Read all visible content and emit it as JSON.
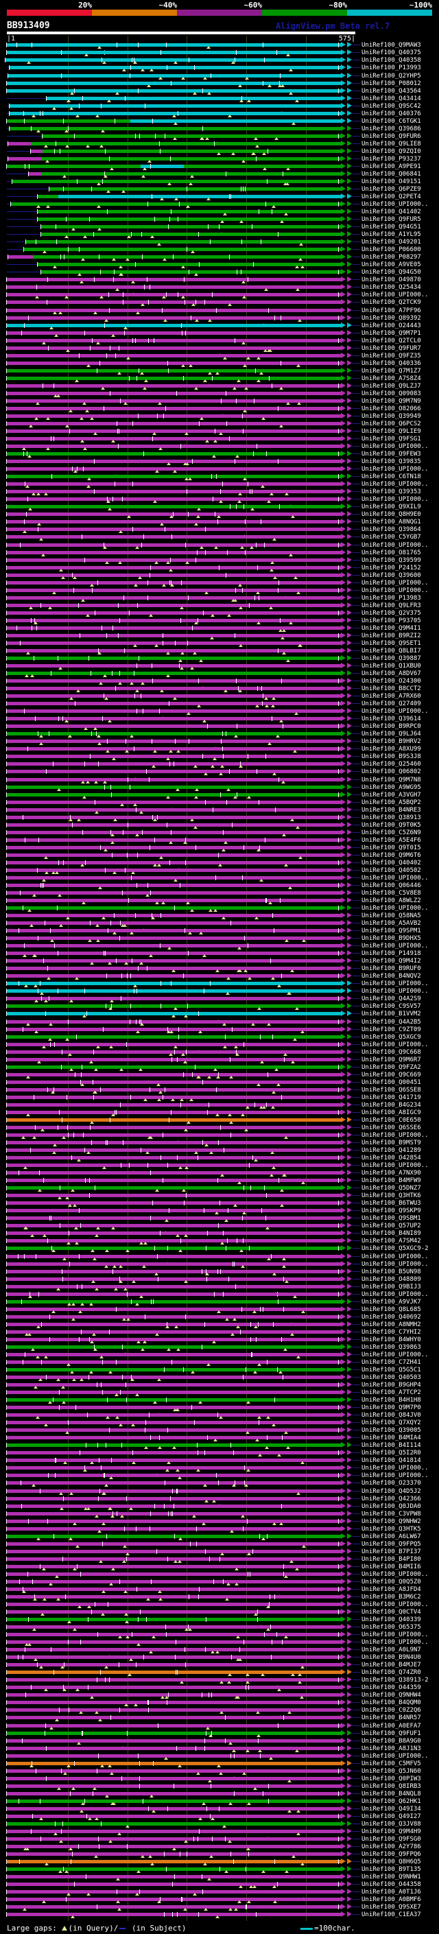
{
  "colors": {
    "c": "#00c2cc",
    "g": "#00a000",
    "m": "#b230b2",
    "o": "#e07818",
    "navy": "#1c1c96",
    "gap_yellow": "#e6e696",
    "grid": "#3f3f12",
    "scale_red": "#e51230",
    "scale_orange": "#d97800",
    "scale_purple": "#8c1c8c",
    "scale_green": "#009400",
    "scale_cyan": "#00b8c4"
  },
  "chart_data": {
    "type": "table",
    "title": "BB913409",
    "program": "AlignView.pm Beta rel.7",
    "ruler": {
      "start_label": "|1",
      "end_label": "575|",
      "start": 1,
      "end": 575
    },
    "identity_scale": {
      "labels": [
        "20%",
        "~40%",
        "~60%",
        "~80%",
        "~100%"
      ],
      "colors": [
        "#e51230",
        "#d97800",
        "#8c1c8c",
        "#009400",
        "#00b8c4"
      ]
    },
    "legend": {
      "large_gaps": "Large gaps:",
      "query_gap_suffix": "(in Query)/",
      "subject_gap_suffix": " (in Subject)",
      "char_scale": "=100char."
    },
    "label_prefix": "UniRef100_",
    "hits": [
      {
        "l": "Q9MAW3",
        "c": "c"
      },
      {
        "l": "Q40375",
        "c": "c"
      },
      {
        "l": "Q40358",
        "c": "c",
        "s": 8
      },
      {
        "l": "P13993",
        "c": "c",
        "s": 14
      },
      {
        "l": "Q2YHP5",
        "c": "c",
        "s": 12
      },
      {
        "l": "P08012",
        "c": "c"
      },
      {
        "l": "Q43564",
        "c": "c"
      },
      {
        "l": "Q43414",
        "c": "c",
        "s": 68
      },
      {
        "l": "Q9SC42",
        "c": "c",
        "s": 14
      },
      {
        "l": "Q40376",
        "c": "c",
        "s": 14
      },
      {
        "l": "C6TGK1",
        "c": "c",
        "g2": [
          [
            10,
            190,
            "g"
          ],
          [
            190,
            497,
            "c"
          ]
        ]
      },
      {
        "l": "Q39686",
        "c": "g",
        "s": 14
      },
      {
        "l": "Q9FUR6",
        "c": "g",
        "s": 62
      },
      {
        "l": "Q9LIE8",
        "c": "g",
        "s": 12,
        "p": [
          12,
          45
        ]
      },
      {
        "l": "Q9ZQI0",
        "c": "g",
        "s": 45,
        "p": [
          45,
          62
        ]
      },
      {
        "l": "P93237",
        "c": "g",
        "s": 12,
        "p": [
          12,
          60
        ]
      },
      {
        "l": "A9PE91",
        "c": "g",
        "g2": [
          [
            10,
            205,
            "g"
          ],
          [
            205,
            268,
            "c"
          ],
          [
            268,
            497,
            "g"
          ]
        ]
      },
      {
        "l": "Q06841",
        "c": "g",
        "s": 42,
        "p": [
          42,
          60
        ]
      },
      {
        "l": "O49151",
        "c": "g",
        "s": 18
      },
      {
        "l": "Q6PZE9",
        "c": "g",
        "s": 72
      },
      {
        "l": "Q2PET4",
        "c": "c",
        "s": 55,
        "g2": [
          [
            55,
            85,
            "g"
          ],
          [
            85,
            497,
            "c"
          ]
        ]
      },
      {
        "l": "UPI000..",
        "c": "g",
        "s": 16
      },
      {
        "l": "Q41402",
        "c": "g",
        "s": 55
      },
      {
        "l": "Q9FUR5",
        "c": "g",
        "s": 55
      },
      {
        "l": "Q94G51",
        "c": "g",
        "s": 60
      },
      {
        "l": "A1YL95",
        "c": "g",
        "s": 60
      },
      {
        "l": "O49201",
        "c": "g",
        "s": 38
      },
      {
        "l": "P06600",
        "c": "g",
        "s": 35
      },
      {
        "l": "P08297",
        "c": "g",
        "s": 12,
        "p": [
          12,
          48
        ]
      },
      {
        "l": "A9VE05",
        "c": "g",
        "s": 55
      },
      {
        "l": "Q94G50",
        "c": "g",
        "s": 60
      },
      {
        "l": "O49870",
        "c": "m"
      },
      {
        "l": "Q25434",
        "c": "m"
      },
      {
        "l": "UPI000..",
        "c": "m"
      },
      {
        "l": "Q2TCK9",
        "c": "m"
      },
      {
        "l": "A7PF96",
        "c": "m"
      },
      {
        "l": "Q89392",
        "c": "m"
      },
      {
        "l": "O24443",
        "c": "c"
      },
      {
        "l": "Q9M7P1",
        "c": "m"
      },
      {
        "l": "Q2TCL0",
        "c": "m"
      },
      {
        "l": "Q9FUR7",
        "c": "m"
      },
      {
        "l": "Q9FZ35",
        "c": "m"
      },
      {
        "l": "Q40336",
        "c": "m"
      },
      {
        "l": "Q7M1Z7",
        "c": "g"
      },
      {
        "l": "A7S8Z4",
        "c": "g"
      },
      {
        "l": "Q9LZJ7",
        "c": "m"
      },
      {
        "l": "Q09083",
        "c": "m"
      },
      {
        "l": "Q9M7N9",
        "c": "m"
      },
      {
        "l": "O82066",
        "c": "m"
      },
      {
        "l": "Q39949",
        "c": "m"
      },
      {
        "l": "Q6PCS2",
        "c": "m"
      },
      {
        "l": "Q9LIE9",
        "c": "m"
      },
      {
        "l": "Q9FSG1",
        "c": "m"
      },
      {
        "l": "UPI000..",
        "c": "m"
      },
      {
        "l": "Q9FEW3",
        "c": "g"
      },
      {
        "l": "Q39835",
        "c": "m"
      },
      {
        "l": "UPI000..",
        "c": "m"
      },
      {
        "l": "C6TN18",
        "c": "g"
      },
      {
        "l": "UPI000..",
        "c": "m"
      },
      {
        "l": "Q39353",
        "c": "m"
      },
      {
        "l": "UPI000..",
        "c": "m"
      },
      {
        "l": "Q9XIL9",
        "c": "g"
      },
      {
        "l": "Q8H9E0",
        "c": "m"
      },
      {
        "l": "A8NQG1",
        "c": "m"
      },
      {
        "l": "Q39864",
        "c": "m"
      },
      {
        "l": "C5YGB7",
        "c": "m"
      },
      {
        "l": "UPI000..",
        "c": "m"
      },
      {
        "l": "O81765",
        "c": "m"
      },
      {
        "l": "Q39599",
        "c": "m"
      },
      {
        "l": "P24152",
        "c": "m"
      },
      {
        "l": "Q39600",
        "c": "m"
      },
      {
        "l": "UPI000..",
        "c": "m"
      },
      {
        "l": "UPI000..",
        "c": "m"
      },
      {
        "l": "P13983",
        "c": "m"
      },
      {
        "l": "Q9LFR3",
        "c": "m"
      },
      {
        "l": "Q2V375",
        "c": "m"
      },
      {
        "l": "P93705",
        "c": "m"
      },
      {
        "l": "Q9M4I1",
        "c": "m"
      },
      {
        "l": "B9RZI2",
        "c": "m"
      },
      {
        "l": "Q9SET1",
        "c": "m"
      },
      {
        "l": "Q8LBI7",
        "c": "m"
      },
      {
        "l": "Q39887",
        "c": "g"
      },
      {
        "l": "Q1XBU0",
        "c": "m"
      },
      {
        "l": "A8DV67",
        "c": "g"
      },
      {
        "l": "O24300",
        "c": "m"
      },
      {
        "l": "B8CCT2",
        "c": "m"
      },
      {
        "l": "A7RX60",
        "c": "m"
      },
      {
        "l": "Q27409",
        "c": "m"
      },
      {
        "l": "UPI000..",
        "c": "m"
      },
      {
        "l": "Q39614",
        "c": "m"
      },
      {
        "l": "B9RPC0",
        "c": "m"
      },
      {
        "l": "Q9LJ64",
        "c": "g"
      },
      {
        "l": "B9HRV2",
        "c": "m"
      },
      {
        "l": "A8XU99",
        "c": "m"
      },
      {
        "l": "B9S3J8",
        "c": "m"
      },
      {
        "l": "Q25460",
        "c": "m"
      },
      {
        "l": "Q06802",
        "c": "m"
      },
      {
        "l": "Q9M7N8",
        "c": "m"
      },
      {
        "l": "A9WG95",
        "c": "g"
      },
      {
        "l": "A3VGH7",
        "c": "g"
      },
      {
        "l": "A5BQP2",
        "c": "m"
      },
      {
        "l": "B4NRE3",
        "c": "m"
      },
      {
        "l": "Q38913",
        "c": "m"
      },
      {
        "l": "Q9T0K5",
        "c": "m"
      },
      {
        "l": "C5Z6N9",
        "c": "m"
      },
      {
        "l": "A5E4F6",
        "c": "m"
      },
      {
        "l": "Q9T0I5",
        "c": "m"
      },
      {
        "l": "Q9M6T6",
        "c": "m"
      },
      {
        "l": "Q40402",
        "c": "m"
      },
      {
        "l": "Q40502",
        "c": "m"
      },
      {
        "l": "UPI000..",
        "c": "m"
      },
      {
        "l": "Q06446",
        "c": "m"
      },
      {
        "l": "C5V8E8",
        "c": "m"
      },
      {
        "l": "A8WLZ2",
        "c": "m"
      },
      {
        "l": "UPI000..",
        "c": "g"
      },
      {
        "l": "Q58NA5",
        "c": "m"
      },
      {
        "l": "A5AVB2",
        "c": "m"
      },
      {
        "l": "Q9SPM1",
        "c": "m"
      },
      {
        "l": "B9DHX5",
        "c": "m"
      },
      {
        "l": "UPI000..",
        "c": "m"
      },
      {
        "l": "P14918",
        "c": "m"
      },
      {
        "l": "Q9M4I2",
        "c": "m"
      },
      {
        "l": "B9RUF0",
        "c": "m"
      },
      {
        "l": "B4NQV2",
        "c": "m"
      },
      {
        "l": "UPI000..",
        "c": "c"
      },
      {
        "l": "UPI000..",
        "c": "c"
      },
      {
        "l": "Q4A2S9",
        "c": "m"
      },
      {
        "l": "C9SV57",
        "c": "g"
      },
      {
        "l": "B1VVM2",
        "c": "c"
      },
      {
        "l": "Q4A2B5",
        "c": "m"
      },
      {
        "l": "C9ZT09",
        "c": "m"
      },
      {
        "l": "Q5XGC9",
        "c": "g"
      },
      {
        "l": "UPI000..",
        "c": "m"
      },
      {
        "l": "Q9C668",
        "c": "m"
      },
      {
        "l": "Q9M6R7",
        "c": "m"
      },
      {
        "l": "Q9FZA2",
        "c": "g"
      },
      {
        "l": "Q9C669",
        "c": "m"
      },
      {
        "l": "Q00451",
        "c": "m"
      },
      {
        "l": "Q6SSE8",
        "c": "m"
      },
      {
        "l": "Q41719",
        "c": "m"
      },
      {
        "l": "B4G234",
        "c": "m"
      },
      {
        "l": "A8IGC9",
        "c": "m"
      },
      {
        "l": "C0E650",
        "c": "o"
      },
      {
        "l": "Q6SSE6",
        "c": "m"
      },
      {
        "l": "UPI000..",
        "c": "m"
      },
      {
        "l": "B9MST9",
        "c": "m"
      },
      {
        "l": "Q41289",
        "c": "m"
      },
      {
        "l": "O42854",
        "c": "m"
      },
      {
        "l": "UPI000..",
        "c": "m"
      },
      {
        "l": "A7NX90",
        "c": "m"
      },
      {
        "l": "B4MFW9",
        "c": "m"
      },
      {
        "l": "Q5DNZ7",
        "c": "g"
      },
      {
        "l": "Q3HTK6",
        "c": "m"
      },
      {
        "l": "B6TWU3",
        "c": "m"
      },
      {
        "l": "Q9SKP9",
        "c": "m"
      },
      {
        "l": "Q9SBM1",
        "c": "m"
      },
      {
        "l": "Q57UP2",
        "c": "m"
      },
      {
        "l": "B4NI89",
        "c": "m"
      },
      {
        "l": "A7SM42",
        "c": "m"
      },
      {
        "l": "Q5XGC9-2",
        "c": "g"
      },
      {
        "l": "UPI000..",
        "c": "m"
      },
      {
        "l": "UPI000..",
        "c": "m"
      },
      {
        "l": "B5UN98",
        "c": "m"
      },
      {
        "l": "O48809",
        "c": "m"
      },
      {
        "l": "Q9BIJ3",
        "c": "m"
      },
      {
        "l": "UPI000..",
        "c": "m"
      },
      {
        "l": "A9VJK7",
        "c": "g"
      },
      {
        "l": "Q8L685",
        "c": "m"
      },
      {
        "l": "Q40692",
        "c": "m"
      },
      {
        "l": "A8NMH2",
        "c": "m"
      },
      {
        "l": "C7YHI2",
        "c": "m"
      },
      {
        "l": "B4WHY0",
        "c": "m"
      },
      {
        "l": "Q39863",
        "c": "g"
      },
      {
        "l": "UPI000..",
        "c": "m"
      },
      {
        "l": "C7ZH41",
        "c": "m"
      },
      {
        "l": "Q5G5C1",
        "c": "g"
      },
      {
        "l": "Q40503",
        "c": "m"
      },
      {
        "l": "B9GHP4",
        "c": "m"
      },
      {
        "l": "A7TCP2",
        "c": "m"
      },
      {
        "l": "B4H1H8",
        "c": "g"
      },
      {
        "l": "Q9M7P0",
        "c": "m"
      },
      {
        "l": "Q84JV0",
        "c": "m"
      },
      {
        "l": "Q7XQY2",
        "c": "m"
      },
      {
        "l": "Q39005",
        "c": "m"
      },
      {
        "l": "B4MIA4",
        "c": "m"
      },
      {
        "l": "B4I114",
        "c": "g"
      },
      {
        "l": "Q5I2R0",
        "c": "m"
      },
      {
        "l": "Q41814",
        "c": "m"
      },
      {
        "l": "UPI000..",
        "c": "m"
      },
      {
        "l": "UPI000..",
        "c": "m"
      },
      {
        "l": "O23370",
        "c": "m"
      },
      {
        "l": "Q4D5J2",
        "c": "m"
      },
      {
        "l": "Q42366",
        "c": "m"
      },
      {
        "l": "Q0JDA0",
        "c": "m"
      },
      {
        "l": "C3VPW8",
        "c": "m"
      },
      {
        "l": "Q9NHW2",
        "c": "m"
      },
      {
        "l": "Q3HTK5",
        "c": "m"
      },
      {
        "l": "A6LW67",
        "c": "g"
      },
      {
        "l": "Q9FPQ5",
        "c": "m"
      },
      {
        "l": "B7PI37",
        "c": "m"
      },
      {
        "l": "B4PI80",
        "c": "m"
      },
      {
        "l": "B4MII6",
        "c": "m"
      },
      {
        "l": "UPI000..",
        "c": "m"
      },
      {
        "l": "Q0Q5Z0",
        "c": "m"
      },
      {
        "l": "A8JFD4",
        "c": "m"
      },
      {
        "l": "B3M6C2",
        "c": "m"
      },
      {
        "l": "UPI000..",
        "c": "m"
      },
      {
        "l": "Q0CTV4",
        "c": "m"
      },
      {
        "l": "Q40339",
        "c": "g"
      },
      {
        "l": "O65375",
        "c": "m"
      },
      {
        "l": "UPI000..",
        "c": "m"
      },
      {
        "l": "UPI000..",
        "c": "m"
      },
      {
        "l": "A0L9N7",
        "c": "m"
      },
      {
        "l": "B9N4U0",
        "c": "m"
      },
      {
        "l": "B4MJE7",
        "c": "m"
      },
      {
        "l": "Q74ZR0",
        "c": "o"
      },
      {
        "l": "Q38913-2",
        "c": "m"
      },
      {
        "l": "O44359",
        "c": "m"
      },
      {
        "l": "Q9NHW4",
        "c": "m"
      },
      {
        "l": "B4QQM0",
        "c": "m"
      },
      {
        "l": "C0Z2Q6",
        "c": "m"
      },
      {
        "l": "B4NR57",
        "c": "m"
      },
      {
        "l": "A0EFA7",
        "c": "m"
      },
      {
        "l": "Q9FUF1",
        "c": "g"
      },
      {
        "l": "B8A9G0",
        "c": "m"
      },
      {
        "l": "A8J1N3",
        "c": "m"
      },
      {
        "l": "UPI000..",
        "c": "m"
      },
      {
        "l": "C5MFV5",
        "c": "o"
      },
      {
        "l": "Q5JN60",
        "c": "m"
      },
      {
        "l": "Q0PIW3",
        "c": "m"
      },
      {
        "l": "Q8IRB3",
        "c": "m"
      },
      {
        "l": "B4NQL8",
        "c": "m"
      },
      {
        "l": "Q62HK1",
        "c": "g"
      },
      {
        "l": "Q49I34",
        "c": "m"
      },
      {
        "l": "Q49I27",
        "c": "m"
      },
      {
        "l": "Q3JV88",
        "c": "g"
      },
      {
        "l": "Q9M4H9",
        "c": "m"
      },
      {
        "l": "Q9FSG0",
        "c": "m"
      },
      {
        "l": "A2Y786",
        "c": "m"
      },
      {
        "l": "Q9FPQ6",
        "c": "m"
      },
      {
        "l": "Q8H6Q5",
        "c": "o"
      },
      {
        "l": "B9T135",
        "c": "g"
      },
      {
        "l": "Q9NHW1",
        "c": "m"
      },
      {
        "l": "O44358",
        "c": "m"
      },
      {
        "l": "A0T1J6",
        "c": "m"
      },
      {
        "l": "A0BMF6",
        "c": "m"
      },
      {
        "l": "Q9SXE7",
        "c": "m"
      },
      {
        "l": "C1EA37",
        "c": "m"
      }
    ]
  }
}
